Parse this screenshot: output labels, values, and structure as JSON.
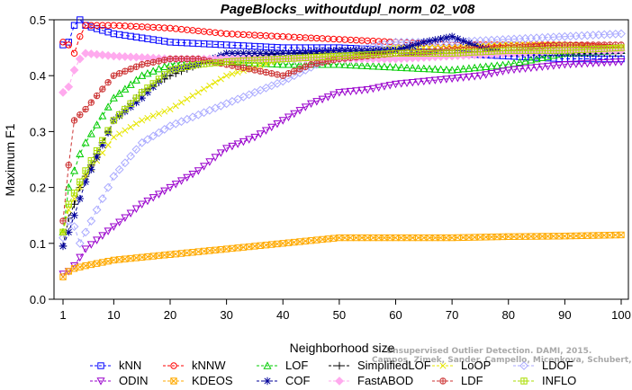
{
  "chart_data": {
    "type": "line",
    "title": "PageBlocks_withoutdupl_norm_02_v08",
    "xlabel": "Neighborhood size",
    "ylabel": "Maximum F1",
    "xlim": [
      1,
      100
    ],
    "ylim": [
      0,
      0.5
    ],
    "xticks": [
      1,
      10,
      20,
      30,
      40,
      50,
      60,
      70,
      80,
      90,
      100
    ],
    "yticks": [
      0.0,
      0.1,
      0.2,
      0.3,
      0.4,
      0.5
    ],
    "ytick_labels": [
      "0.0",
      "0.1",
      "0.2",
      "0.3",
      "0.4",
      "0.5"
    ],
    "grid": false,
    "legend_position": "bottom",
    "watermark": [
      "Unsupervised Outlier Detection. DAMI, 2015.",
      "Campos, Zimek, Sander, Campello, Micenkova, Schubert, Assent, Houle"
    ],
    "series": [
      {
        "name": "kNN",
        "color": "#0000ff",
        "marker": "square",
        "x": [
          1,
          2,
          3,
          4,
          5,
          10,
          20,
          30,
          40,
          50,
          60,
          70,
          80,
          90,
          100
        ],
        "y": [
          0.455,
          0.46,
          0.49,
          0.5,
          0.49,
          0.475,
          0.46,
          0.455,
          0.45,
          0.45,
          0.445,
          0.44,
          0.435,
          0.43,
          0.43
        ]
      },
      {
        "name": "kNNW",
        "color": "#ff0000",
        "marker": "circle",
        "x": [
          1,
          2,
          3,
          4,
          5,
          10,
          20,
          30,
          40,
          50,
          60,
          70,
          80,
          90,
          100
        ],
        "y": [
          0.46,
          0.455,
          0.44,
          0.47,
          0.49,
          0.49,
          0.485,
          0.475,
          0.47,
          0.465,
          0.46,
          0.455,
          0.455,
          0.455,
          0.45
        ]
      },
      {
        "name": "LOF",
        "color": "#00cc00",
        "marker": "triangle-up",
        "x": [
          1,
          2,
          3,
          4,
          5,
          10,
          15,
          20,
          25,
          30,
          40,
          50,
          60,
          70,
          80,
          90,
          100
        ],
        "y": [
          0.12,
          0.2,
          0.23,
          0.26,
          0.28,
          0.36,
          0.4,
          0.42,
          0.43,
          0.425,
          0.42,
          0.42,
          0.415,
          0.41,
          0.42,
          0.44,
          0.445
        ]
      },
      {
        "name": "SimplifiedLOF",
        "color": "#000000",
        "marker": "plus",
        "x": [
          1,
          2,
          3,
          4,
          5,
          10,
          15,
          20,
          25,
          30,
          40,
          50,
          60,
          70,
          80,
          90,
          100
        ],
        "y": [
          0.095,
          0.145,
          0.17,
          0.2,
          0.22,
          0.32,
          0.37,
          0.4,
          0.42,
          0.43,
          0.44,
          0.44,
          0.44,
          0.44,
          0.44,
          0.44,
          0.44
        ]
      },
      {
        "name": "LoOP",
        "color": "#e6e600",
        "marker": "x",
        "x": [
          1,
          2,
          3,
          4,
          5,
          10,
          15,
          20,
          25,
          30,
          40,
          50,
          60,
          70,
          80,
          90,
          100
        ],
        "y": [
          0.12,
          0.16,
          0.18,
          0.2,
          0.22,
          0.29,
          0.32,
          0.34,
          0.37,
          0.4,
          0.43,
          0.44,
          0.45,
          0.45,
          0.455,
          0.455,
          0.45
        ]
      },
      {
        "name": "LDOF",
        "color": "#aaaaff",
        "marker": "diamond",
        "x": [
          1,
          2,
          3,
          4,
          5,
          10,
          15,
          20,
          25,
          30,
          35,
          40,
          50,
          60,
          70,
          80,
          90,
          100
        ],
        "y": [
          0.11,
          0.14,
          0.13,
          0.1,
          0.12,
          0.22,
          0.28,
          0.31,
          0.33,
          0.35,
          0.37,
          0.39,
          0.44,
          0.46,
          0.46,
          0.465,
          0.47,
          0.475
        ]
      },
      {
        "name": "ODIN",
        "color": "#9900cc",
        "marker": "triangle-down",
        "x": [
          1,
          2,
          3,
          4,
          5,
          10,
          15,
          20,
          25,
          30,
          35,
          40,
          45,
          50,
          55,
          60,
          65,
          70,
          75,
          80,
          90,
          100
        ],
        "y": [
          0.045,
          0.05,
          0.06,
          0.075,
          0.09,
          0.13,
          0.17,
          0.2,
          0.23,
          0.27,
          0.29,
          0.32,
          0.35,
          0.37,
          0.375,
          0.385,
          0.39,
          0.395,
          0.4,
          0.41,
          0.42,
          0.425
        ]
      },
      {
        "name": "KDEOS",
        "color": "#ffaa00",
        "marker": "square-x",
        "x": [
          1,
          2,
          3,
          5,
          10,
          20,
          30,
          40,
          50,
          60,
          70,
          80,
          90,
          100
        ],
        "y": [
          0.04,
          0.05,
          0.055,
          0.06,
          0.07,
          0.08,
          0.09,
          0.1,
          0.11,
          0.11,
          0.11,
          0.112,
          0.113,
          0.115
        ]
      },
      {
        "name": "COF",
        "color": "#000099",
        "marker": "asterisk",
        "x": [
          1,
          2,
          3,
          4,
          5,
          10,
          15,
          20,
          25,
          30,
          40,
          50,
          60,
          65,
          70,
          75,
          80,
          90,
          100
        ],
        "y": [
          0.095,
          0.12,
          0.15,
          0.18,
          0.21,
          0.32,
          0.36,
          0.41,
          0.42,
          0.44,
          0.44,
          0.445,
          0.445,
          0.46,
          0.47,
          0.45,
          0.44,
          0.44,
          0.445
        ]
      },
      {
        "name": "FastABOD",
        "color": "#ffaaee",
        "marker": "diamond-filled",
        "x": [
          1,
          2,
          3,
          4,
          5,
          10,
          20,
          30,
          40,
          50,
          60,
          70,
          80,
          90,
          100
        ],
        "y": [
          0.37,
          0.38,
          0.41,
          0.43,
          0.44,
          0.435,
          0.43,
          0.43,
          0.43,
          0.43,
          0.43,
          0.435,
          0.44,
          0.445,
          0.445
        ]
      },
      {
        "name": "LDF",
        "color": "#cc3333",
        "marker": "circle-plus",
        "x": [
          1,
          2,
          3,
          4,
          5,
          10,
          15,
          20,
          25,
          30,
          35,
          40,
          45,
          50,
          60,
          70,
          80,
          90,
          100
        ],
        "y": [
          0.14,
          0.24,
          0.32,
          0.33,
          0.34,
          0.4,
          0.42,
          0.43,
          0.43,
          0.42,
          0.41,
          0.4,
          0.42,
          0.43,
          0.44,
          0.445,
          0.45,
          0.455,
          0.455
        ]
      },
      {
        "name": "INFLO",
        "color": "#aadd00",
        "marker": "square-cross",
        "x": [
          1,
          2,
          3,
          4,
          5,
          10,
          15,
          20,
          25,
          30,
          40,
          50,
          60,
          70,
          80,
          90,
          100
        ],
        "y": [
          0.12,
          0.17,
          0.19,
          0.21,
          0.23,
          0.32,
          0.37,
          0.41,
          0.42,
          0.425,
          0.43,
          0.435,
          0.44,
          0.44,
          0.445,
          0.445,
          0.45
        ]
      }
    ],
    "legend": [
      [
        "kNN",
        "kNNW",
        "LOF",
        "SimplifiedLOF",
        "LoOP",
        "LDOF"
      ],
      [
        "ODIN",
        "KDEOS",
        "COF",
        "FastABOD",
        "LDF",
        "INFLO"
      ]
    ]
  }
}
